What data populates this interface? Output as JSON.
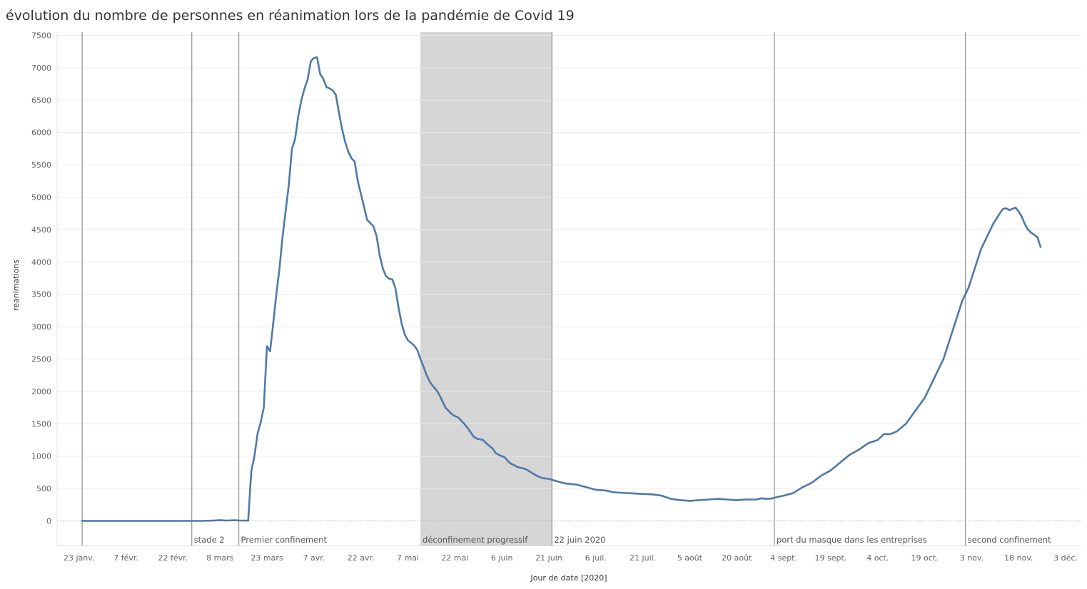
{
  "chart_data": {
    "type": "line",
    "title": "évolution du nombre de personnes en réanimation lors de la pandémie de Covid 19",
    "xlabel": "Jour de date [2020]",
    "ylabel": "reanimations",
    "ylim": [
      -380,
      7550
    ],
    "xlim": [
      "2020-01-16",
      "2020-12-08"
    ],
    "y_ticks": [
      7500,
      7000,
      6500,
      6000,
      5500,
      5000,
      4500,
      4000,
      3500,
      3000,
      2500,
      2000,
      1500,
      1000,
      500,
      0
    ],
    "x_ticks": [
      {
        "date": "2020-01-23",
        "label": "23 janv."
      },
      {
        "date": "2020-02-07",
        "label": "7 févr."
      },
      {
        "date": "2020-02-22",
        "label": "22 févr."
      },
      {
        "date": "2020-03-08",
        "label": "8 mars"
      },
      {
        "date": "2020-03-23",
        "label": "23 mars"
      },
      {
        "date": "2020-04-07",
        "label": "7 avr."
      },
      {
        "date": "2020-04-22",
        "label": "22 avr."
      },
      {
        "date": "2020-05-07",
        "label": "7 mai"
      },
      {
        "date": "2020-05-22",
        "label": "22 mai"
      },
      {
        "date": "2020-06-06",
        "label": "6 juin"
      },
      {
        "date": "2020-06-21",
        "label": "21 juin"
      },
      {
        "date": "2020-07-06",
        "label": "6 juil."
      },
      {
        "date": "2020-07-21",
        "label": "21 juil."
      },
      {
        "date": "2020-08-05",
        "label": "5 août"
      },
      {
        "date": "2020-08-20",
        "label": "20 août"
      },
      {
        "date": "2020-09-04",
        "label": "4 sept."
      },
      {
        "date": "2020-09-19",
        "label": "19 sept."
      },
      {
        "date": "2020-10-04",
        "label": "4 oct."
      },
      {
        "date": "2020-10-19",
        "label": "19 oct."
      },
      {
        "date": "2020-11-03",
        "label": "3 nov."
      },
      {
        "date": "2020-11-18",
        "label": "18 nov."
      },
      {
        "date": "2020-12-03",
        "label": "3 déc."
      }
    ],
    "grid": true,
    "line_color": "#4e79a7",
    "event_line_color": "#999999",
    "band_color": "#d6d6d6",
    "events": [
      {
        "date": "2020-01-24",
        "label": ""
      },
      {
        "date": "2020-02-28",
        "label": "stade 2"
      },
      {
        "date": "2020-03-14",
        "label": "Premier confinement"
      },
      {
        "date": "2020-06-22",
        "label": "22 juin 2020"
      },
      {
        "date": "2020-09-01",
        "label": "port du masque dans les entreprises"
      },
      {
        "date": "2020-11-01",
        "label": "second confinement"
      }
    ],
    "bands": [
      {
        "start": "2020-05-11",
        "end": "2020-06-22",
        "label": "déconfinement progressif"
      }
    ],
    "series": [
      {
        "name": "",
        "points": [
          [
            "2020-01-24",
            0
          ],
          [
            "2020-03-02",
            0
          ],
          [
            "2020-03-06",
            5
          ],
          [
            "2020-03-08",
            12
          ],
          [
            "2020-03-10",
            5
          ],
          [
            "2020-03-13",
            10
          ],
          [
            "2020-03-14",
            5
          ],
          [
            "2020-03-16",
            5
          ],
          [
            "2020-03-17",
            3
          ],
          [
            "2020-03-18",
            770
          ],
          [
            "2020-03-19",
            1000
          ],
          [
            "2020-03-20",
            1350
          ],
          [
            "2020-03-21",
            1520
          ],
          [
            "2020-03-22",
            1750
          ],
          [
            "2020-03-23",
            2700
          ],
          [
            "2020-03-24",
            2620
          ],
          [
            "2020-03-25",
            3050
          ],
          [
            "2020-03-26",
            3500
          ],
          [
            "2020-03-27",
            3900
          ],
          [
            "2020-03-28",
            4400
          ],
          [
            "2020-03-29",
            4800
          ],
          [
            "2020-03-30",
            5200
          ],
          [
            "2020-03-31",
            5750
          ],
          [
            "2020-04-01",
            5900
          ],
          [
            "2020-04-02",
            6250
          ],
          [
            "2020-04-03",
            6500
          ],
          [
            "2020-04-04",
            6680
          ],
          [
            "2020-04-05",
            6820
          ],
          [
            "2020-04-06",
            7100
          ],
          [
            "2020-04-07",
            7150
          ],
          [
            "2020-04-08",
            7160
          ],
          [
            "2020-04-09",
            6900
          ],
          [
            "2020-04-10",
            6830
          ],
          [
            "2020-04-11",
            6700
          ],
          [
            "2020-04-12",
            6680
          ],
          [
            "2020-04-13",
            6650
          ],
          [
            "2020-04-14",
            6580
          ],
          [
            "2020-04-15",
            6300
          ],
          [
            "2020-04-16",
            6050
          ],
          [
            "2020-04-17",
            5850
          ],
          [
            "2020-04-18",
            5700
          ],
          [
            "2020-04-19",
            5600
          ],
          [
            "2020-04-20",
            5550
          ],
          [
            "2020-04-21",
            5250
          ],
          [
            "2020-04-22",
            5050
          ],
          [
            "2020-04-23",
            4850
          ],
          [
            "2020-04-24",
            4650
          ],
          [
            "2020-04-25",
            4600
          ],
          [
            "2020-04-26",
            4550
          ],
          [
            "2020-04-27",
            4400
          ],
          [
            "2020-04-28",
            4100
          ],
          [
            "2020-04-29",
            3900
          ],
          [
            "2020-04-30",
            3780
          ],
          [
            "2020-05-01",
            3740
          ],
          [
            "2020-05-02",
            3730
          ],
          [
            "2020-05-03",
            3600
          ],
          [
            "2020-05-04",
            3300
          ],
          [
            "2020-05-05",
            3050
          ],
          [
            "2020-05-06",
            2880
          ],
          [
            "2020-05-07",
            2790
          ],
          [
            "2020-05-08",
            2750
          ],
          [
            "2020-05-09",
            2710
          ],
          [
            "2020-05-10",
            2640
          ],
          [
            "2020-05-11",
            2500
          ],
          [
            "2020-05-12",
            2380
          ],
          [
            "2020-05-13",
            2250
          ],
          [
            "2020-05-14",
            2150
          ],
          [
            "2020-05-15",
            2080
          ],
          [
            "2020-05-16",
            2030
          ],
          [
            "2020-05-17",
            1950
          ],
          [
            "2020-05-18",
            1850
          ],
          [
            "2020-05-19",
            1750
          ],
          [
            "2020-05-20",
            1700
          ],
          [
            "2020-05-21",
            1650
          ],
          [
            "2020-05-22",
            1620
          ],
          [
            "2020-05-23",
            1600
          ],
          [
            "2020-05-24",
            1550
          ],
          [
            "2020-05-25",
            1500
          ],
          [
            "2020-05-26",
            1440
          ],
          [
            "2020-05-27",
            1370
          ],
          [
            "2020-05-28",
            1300
          ],
          [
            "2020-05-29",
            1270
          ],
          [
            "2020-05-30",
            1260
          ],
          [
            "2020-05-31",
            1250
          ],
          [
            "2020-06-01",
            1200
          ],
          [
            "2020-06-02",
            1160
          ],
          [
            "2020-06-03",
            1120
          ],
          [
            "2020-06-04",
            1050
          ],
          [
            "2020-06-05",
            1020
          ],
          [
            "2020-06-06",
            1000
          ],
          [
            "2020-06-07",
            980
          ],
          [
            "2020-06-08",
            920
          ],
          [
            "2020-06-09",
            880
          ],
          [
            "2020-06-10",
            860
          ],
          [
            "2020-06-11",
            830
          ],
          [
            "2020-06-12",
            820
          ],
          [
            "2020-06-13",
            810
          ],
          [
            "2020-06-14",
            790
          ],
          [
            "2020-06-15",
            760
          ],
          [
            "2020-06-16",
            730
          ],
          [
            "2020-06-17",
            700
          ],
          [
            "2020-06-18",
            680
          ],
          [
            "2020-06-19",
            660
          ],
          [
            "2020-06-21",
            650
          ],
          [
            "2020-06-23",
            620
          ],
          [
            "2020-06-26",
            580
          ],
          [
            "2020-06-30",
            560
          ],
          [
            "2020-07-03",
            520
          ],
          [
            "2020-07-06",
            480
          ],
          [
            "2020-07-09",
            470
          ],
          [
            "2020-07-12",
            440
          ],
          [
            "2020-07-16",
            430
          ],
          [
            "2020-07-20",
            420
          ],
          [
            "2020-07-24",
            410
          ],
          [
            "2020-07-27",
            390
          ],
          [
            "2020-07-30",
            340
          ],
          [
            "2020-08-02",
            320
          ],
          [
            "2020-08-05",
            310
          ],
          [
            "2020-08-08",
            320
          ],
          [
            "2020-08-11",
            330
          ],
          [
            "2020-08-14",
            340
          ],
          [
            "2020-08-17",
            330
          ],
          [
            "2020-08-20",
            320
          ],
          [
            "2020-08-23",
            330
          ],
          [
            "2020-08-26",
            330
          ],
          [
            "2020-08-28",
            350
          ],
          [
            "2020-08-29",
            340
          ],
          [
            "2020-08-31",
            345
          ],
          [
            "2020-09-02",
            370
          ],
          [
            "2020-09-04",
            390
          ],
          [
            "2020-09-07",
            430
          ],
          [
            "2020-09-10",
            520
          ],
          [
            "2020-09-13",
            590
          ],
          [
            "2020-09-16",
            700
          ],
          [
            "2020-09-19",
            780
          ],
          [
            "2020-09-22",
            900
          ],
          [
            "2020-09-25",
            1020
          ],
          [
            "2020-09-28",
            1100
          ],
          [
            "2020-10-01",
            1200
          ],
          [
            "2020-10-04",
            1250
          ],
          [
            "2020-10-06",
            1340
          ],
          [
            "2020-10-08",
            1340
          ],
          [
            "2020-10-10",
            1380
          ],
          [
            "2020-10-13",
            1500
          ],
          [
            "2020-10-16",
            1700
          ],
          [
            "2020-10-19",
            1900
          ],
          [
            "2020-10-21",
            2100
          ],
          [
            "2020-10-23",
            2300
          ],
          [
            "2020-10-25",
            2500
          ],
          [
            "2020-10-27",
            2800
          ],
          [
            "2020-10-29",
            3100
          ],
          [
            "2020-10-31",
            3400
          ],
          [
            "2020-11-02",
            3600
          ],
          [
            "2020-11-04",
            3900
          ],
          [
            "2020-11-06",
            4200
          ],
          [
            "2020-11-08",
            4400
          ],
          [
            "2020-11-10",
            4600
          ],
          [
            "2020-11-12",
            4750
          ],
          [
            "2020-11-13",
            4820
          ],
          [
            "2020-11-14",
            4830
          ],
          [
            "2020-11-15",
            4800
          ],
          [
            "2020-11-16",
            4820
          ],
          [
            "2020-11-17",
            4840
          ],
          [
            "2020-11-18",
            4780
          ],
          [
            "2020-11-19",
            4700
          ],
          [
            "2020-11-20",
            4580
          ],
          [
            "2020-11-21",
            4500
          ],
          [
            "2020-11-22",
            4450
          ],
          [
            "2020-11-23",
            4420
          ],
          [
            "2020-11-24",
            4380
          ],
          [
            "2020-11-25",
            4230
          ]
        ]
      }
    ]
  }
}
